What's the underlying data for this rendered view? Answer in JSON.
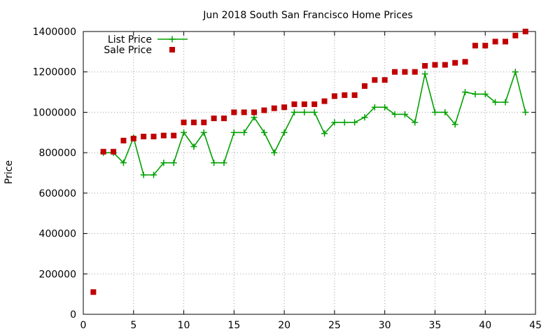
{
  "chart_data": {
    "type": "line",
    "title": "Jun 2018 South San Francisco Home Prices",
    "xlabel": "",
    "ylabel": "Price",
    "xlim": [
      0,
      45
    ],
    "ylim": [
      0,
      1400000
    ],
    "grid": true,
    "legend_position": "top-left",
    "x_ticks": [
      "0",
      "5",
      "10",
      "15",
      "20",
      "25",
      "30",
      "35",
      "40",
      "45"
    ],
    "y_ticks": [
      "0",
      "200000",
      "400000",
      "600000",
      "800000",
      "1000000",
      "1200000",
      "1400000"
    ],
    "x": [
      1,
      2,
      3,
      4,
      5,
      6,
      7,
      8,
      9,
      10,
      11,
      12,
      13,
      14,
      15,
      16,
      17,
      18,
      19,
      20,
      21,
      22,
      23,
      24,
      25,
      26,
      27,
      28,
      29,
      30,
      31,
      32,
      33,
      34,
      35,
      36,
      37,
      38,
      39,
      40,
      41,
      42,
      43,
      44
    ],
    "series": [
      {
        "name": "List Price",
        "style": "lines-points",
        "color": "#00a000",
        "values": [
          null,
          800000,
          800000,
          750000,
          875000,
          690000,
          690000,
          750000,
          750000,
          900000,
          830000,
          900000,
          750000,
          750000,
          900000,
          900000,
          975000,
          900000,
          800000,
          900000,
          1000000,
          1000000,
          1000000,
          895000,
          950000,
          950000,
          950000,
          975000,
          1025000,
          1025000,
          990000,
          990000,
          950000,
          1190000,
          1000000,
          1000000,
          940000,
          1100000,
          1090000,
          1090000,
          1050000,
          1050000,
          1200000,
          1000000
        ]
      },
      {
        "name": "Sale Price",
        "style": "points",
        "color": "#c00000",
        "values": [
          110000,
          805000,
          805000,
          860000,
          870000,
          880000,
          880000,
          885000,
          885000,
          950000,
          950000,
          950000,
          970000,
          970000,
          1000000,
          1000000,
          1000000,
          1010000,
          1020000,
          1025000,
          1040000,
          1040000,
          1040000,
          1055000,
          1080000,
          1085000,
          1085000,
          1130000,
          1160000,
          1160000,
          1200000,
          1200000,
          1200000,
          1230000,
          1235000,
          1235000,
          1245000,
          1250000,
          1330000,
          1330000,
          1350000,
          1350000,
          1380000,
          1400000
        ]
      }
    ]
  }
}
